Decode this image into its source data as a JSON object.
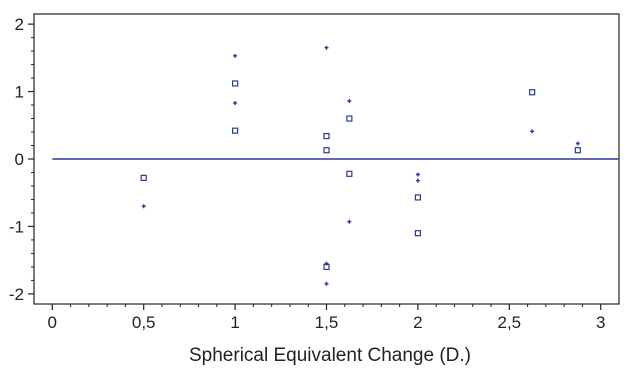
{
  "chart_data": {
    "type": "scatter",
    "title": "",
    "xlabel": "Spherical Equivalent Change (D.)",
    "ylabel": "",
    "xlim": [
      -0.1,
      3.1
    ],
    "ylim": [
      -2.15,
      2.15
    ],
    "x_ticks": [
      0,
      0.5,
      1,
      1.5,
      2,
      2.5,
      3
    ],
    "x_tick_labels": [
      "0",
      "0,5",
      "1",
      "1,5",
      "2",
      "2,5",
      "3"
    ],
    "y_ticks": [
      -2,
      -1,
      0,
      1,
      2
    ],
    "y_tick_labels": [
      "-2",
      "-1",
      "0",
      "1",
      "2"
    ],
    "grid": false,
    "reference_line": {
      "y": 0
    },
    "colors": {
      "points": "#2b3a9c",
      "reference_line": "#2b3a9c",
      "axes": "#222222"
    },
    "series": [
      {
        "marker": "square",
        "x": [
          0.5,
          1.0,
          1.0,
          1.5,
          1.5,
          1.5,
          1.625,
          1.625,
          2.0,
          2.0,
          2.625,
          2.875
        ],
        "y": [
          -0.28,
          1.12,
          0.42,
          0.34,
          0.13,
          -1.6,
          0.6,
          -0.22,
          -0.57,
          -1.1,
          0.99,
          0.13
        ]
      },
      {
        "marker": "plus",
        "x": [
          0.5,
          1.0,
          1.0,
          1.5,
          1.5,
          1.5,
          1.625,
          1.625,
          2.0,
          2.0,
          2.625,
          2.875
        ],
        "y": [
          -0.7,
          1.53,
          0.83,
          1.65,
          -1.55,
          -1.85,
          0.86,
          -0.93,
          -0.23,
          -0.32,
          0.41,
          0.23
        ]
      }
    ]
  }
}
